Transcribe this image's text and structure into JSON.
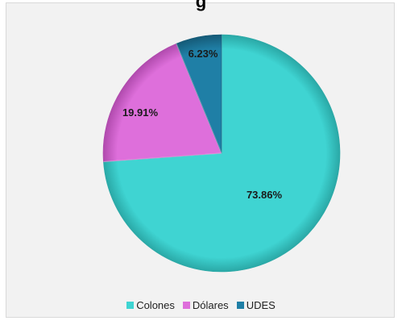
{
  "chart_data": {
    "type": "pie",
    "title": "g",
    "series": [
      {
        "values": [
          73.86,
          19.91,
          6.23
        ]
      }
    ],
    "categories": [
      "Colones",
      "Dólares",
      "UDES"
    ],
    "slices": [
      {
        "label": "Colones",
        "value": 73.86,
        "display": "73.86%",
        "color": "#3fd4d2",
        "dark": "#2aa8a6"
      },
      {
        "label": "Dólares",
        "value": 19.91,
        "display": "19.91%",
        "color": "#de6fdb",
        "dark": "#b04aad"
      },
      {
        "label": "UDES",
        "value": 6.23,
        "display": "6.23%",
        "color": "#1f7fa6",
        "dark": "#155a77"
      }
    ],
    "legend_position": "bottom"
  }
}
